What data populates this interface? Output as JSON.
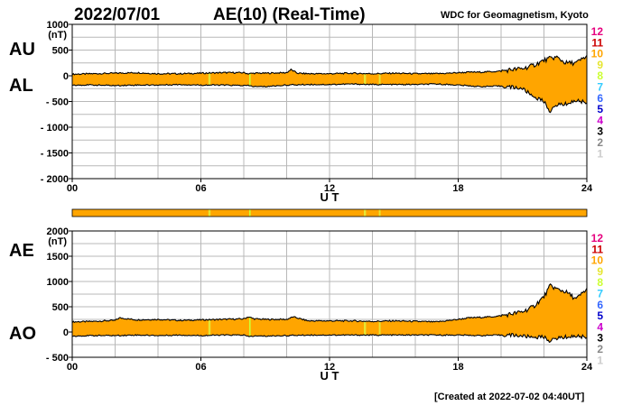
{
  "header": {
    "date": "2022/07/01",
    "title": "AE(10) (Real-Time)",
    "source": "WDC for Geomagnetism, Kyoto"
  },
  "footer": {
    "created": "[Created at 2022-07-02 04:40UT]"
  },
  "colors": {
    "fill": "#ffa500",
    "line": "#000000",
    "grid": "#b8b8b8",
    "coverage": {
      "12": "#ffa500",
      "10": "#ffa500",
      "9": "#e6e633",
      "8": "#ccff33",
      "7": "#33ccff",
      "6": "#3366ff",
      "5": "#0000cc",
      "4": "#cc00cc",
      "3": "#000000",
      "2": "#888888",
      "1": "#cccccc",
      "11": "#cc0000"
    }
  },
  "legend": [
    {
      "label": "12",
      "color": "#e6007e"
    },
    {
      "label": "11",
      "color": "#cc0000"
    },
    {
      "label": "10",
      "color": "#ffa500"
    },
    {
      "label": "9",
      "color": "#e6e633"
    },
    {
      "label": "8",
      "color": "#ccff33"
    },
    {
      "label": "7",
      "color": "#33ccff"
    },
    {
      "label": "6",
      "color": "#3366ff"
    },
    {
      "label": "5",
      "color": "#0000cc"
    },
    {
      "label": "4",
      "color": "#cc00cc"
    },
    {
      "label": "3",
      "color": "#000000"
    },
    {
      "label": "2",
      "color": "#888888"
    },
    {
      "label": "1",
      "color": "#cccccc"
    }
  ],
  "coverage_strip": {
    "default_stations": 10,
    "segments": [
      {
        "from": 6.35,
        "to": 6.45,
        "stations": 9
      },
      {
        "from": 8.25,
        "to": 8.32,
        "stations": 8
      },
      {
        "from": 13.6,
        "to": 13.7,
        "stations": 9
      },
      {
        "from": 14.3,
        "to": 14.38,
        "stations": 9
      }
    ]
  },
  "chart_data": [
    {
      "type": "area",
      "panel": "AU/AL",
      "ylabel_upper": "AU",
      "ylabel_lower": "AL",
      "unit": "(nT)",
      "xlabel": "U T",
      "xlim": [
        0,
        24
      ],
      "ylim": [
        -2000,
        1000
      ],
      "x_ticks": [
        {
          "v": 0,
          "label": "00"
        },
        {
          "v": 6,
          "label": "06"
        },
        {
          "v": 12,
          "label": "12"
        },
        {
          "v": 18,
          "label": "18"
        },
        {
          "v": 24,
          "label": "24"
        }
      ],
      "y_ticks": [
        {
          "v": 1000,
          "label": "1000"
        },
        {
          "v": 500,
          "label": "500"
        },
        {
          "v": 0,
          "label": "0"
        },
        {
          "v": -500,
          "label": "- 500"
        },
        {
          "v": -1000,
          "label": "- 1000"
        },
        {
          "v": -1500,
          "label": "- 1500"
        },
        {
          "v": -2000,
          "label": "- 2000"
        }
      ],
      "grid": true,
      "series": [
        {
          "name": "AU",
          "x": [
            0,
            1,
            2,
            3,
            4,
            5,
            6,
            7,
            8,
            8.2,
            8.5,
            9,
            10,
            10.2,
            10.5,
            11,
            12,
            13,
            14,
            15,
            16,
            17,
            18,
            18.5,
            19,
            19.5,
            20,
            20.5,
            21,
            21.5,
            22,
            22.3,
            22.6,
            23,
            23.5,
            24
          ],
          "y": [
            30,
            40,
            50,
            60,
            40,
            40,
            50,
            60,
            60,
            40,
            50,
            50,
            60,
            120,
            50,
            40,
            40,
            50,
            40,
            50,
            40,
            40,
            60,
            70,
            70,
            80,
            90,
            120,
            140,
            200,
            300,
            340,
            360,
            250,
            250,
            380
          ]
        },
        {
          "name": "AL",
          "x": [
            0,
            1,
            2,
            3,
            4,
            5,
            6,
            7,
            8,
            8.2,
            8.5,
            9,
            10,
            11,
            12,
            13,
            14,
            15,
            16,
            17,
            18,
            19,
            20,
            20.5,
            21,
            21.5,
            22,
            22.3,
            22.6,
            23,
            23.5,
            24
          ],
          "y": [
            -180,
            -180,
            -190,
            -180,
            -180,
            -170,
            -180,
            -180,
            -190,
            -190,
            -210,
            -210,
            -180,
            -170,
            -170,
            -160,
            -170,
            -170,
            -170,
            -160,
            -180,
            -210,
            -200,
            -220,
            -250,
            -400,
            -500,
            -700,
            -560,
            -550,
            -480,
            -520
          ]
        }
      ]
    },
    {
      "type": "area",
      "panel": "AE/AO",
      "ylabel_upper": "AE",
      "ylabel_lower": "AO",
      "unit": "(nT)",
      "xlabel": "U T",
      "xlim": [
        0,
        24
      ],
      "ylim": [
        -500,
        2000
      ],
      "x_ticks": [
        {
          "v": 0,
          "label": "00"
        },
        {
          "v": 6,
          "label": "06"
        },
        {
          "v": 12,
          "label": "12"
        },
        {
          "v": 18,
          "label": "18"
        },
        {
          "v": 24,
          "label": "24"
        }
      ],
      "y_ticks": [
        {
          "v": 2000,
          "label": "2000"
        },
        {
          "v": 1500,
          "label": "1500"
        },
        {
          "v": 1000,
          "label": "1000"
        },
        {
          "v": 500,
          "label": "500"
        },
        {
          "v": 0,
          "label": "0"
        },
        {
          "v": -500,
          "label": "- 500"
        }
      ],
      "grid": true,
      "series": [
        {
          "name": "AE",
          "x": [
            0,
            1,
            2,
            2.2,
            3,
            4,
            5,
            6,
            7,
            8,
            8.2,
            8.5,
            9,
            10,
            10.3,
            11,
            12,
            13,
            14,
            15,
            16,
            17,
            18,
            18.5,
            19,
            19.5,
            20,
            20.5,
            21,
            21.5,
            22,
            22.3,
            22.6,
            23,
            23.5,
            24
          ],
          "y": [
            200,
            210,
            230,
            280,
            240,
            250,
            230,
            240,
            250,
            260,
            300,
            260,
            250,
            250,
            300,
            220,
            220,
            220,
            210,
            220,
            210,
            200,
            250,
            280,
            290,
            300,
            320,
            360,
            400,
            500,
            700,
            920,
            850,
            800,
            650,
            850
          ]
        },
        {
          "name": "AO",
          "x": [
            0,
            1,
            2,
            3,
            4,
            5,
            6,
            7,
            8,
            8.2,
            8.5,
            9,
            10,
            11,
            12,
            13,
            14,
            15,
            16,
            17,
            18,
            19,
            20,
            20.5,
            21,
            21.5,
            22,
            22.3,
            22.6,
            23,
            23.5,
            24
          ],
          "y": [
            -80,
            -70,
            -70,
            -60,
            -70,
            -60,
            -70,
            -60,
            -60,
            -90,
            -80,
            -80,
            -70,
            -60,
            -60,
            -60,
            -60,
            -60,
            -60,
            -60,
            -60,
            -70,
            -60,
            -60,
            -80,
            -100,
            -100,
            -180,
            -120,
            -100,
            -80,
            -100
          ]
        }
      ]
    }
  ]
}
